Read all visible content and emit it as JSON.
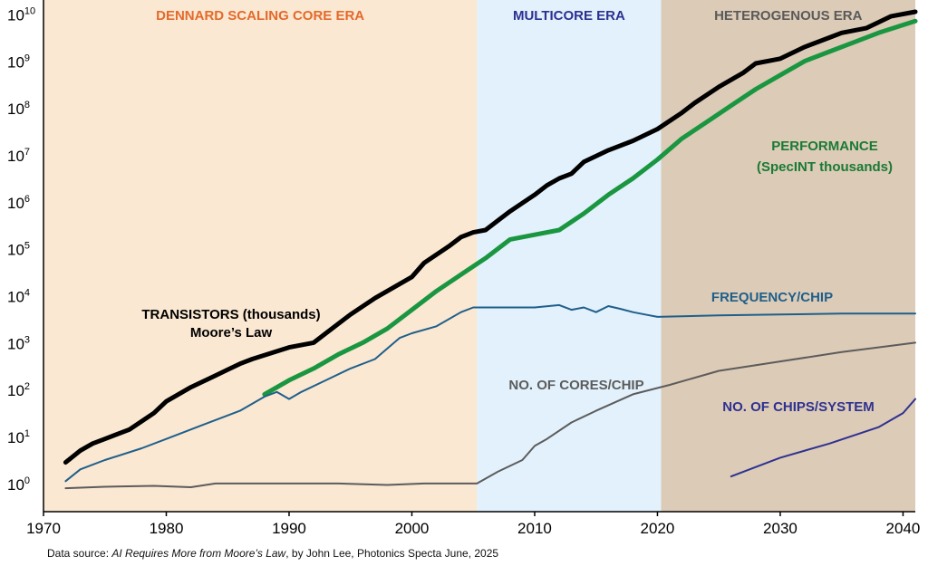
{
  "chart_data": {
    "type": "line",
    "y_scale": "log10",
    "xlim": [
      1970,
      2041
    ],
    "ylim_log10": [
      -0.6,
      10.3
    ],
    "x_ticks": [
      1970,
      1980,
      1990,
      2000,
      2010,
      2020,
      2030,
      2040
    ],
    "y_ticks": [
      {
        "base": "10",
        "exp": "0"
      },
      {
        "base": "10",
        "exp": "1"
      },
      {
        "base": "10",
        "exp": "2"
      },
      {
        "base": "10",
        "exp": "3"
      },
      {
        "base": "10",
        "exp": "4"
      },
      {
        "base": "10",
        "exp": "5"
      },
      {
        "base": "10",
        "exp": "6"
      },
      {
        "base": "10",
        "exp": "7"
      },
      {
        "base": "10",
        "exp": "8"
      },
      {
        "base": "10",
        "exp": "9"
      },
      {
        "base": "10",
        "exp": "10"
      }
    ],
    "eras": [
      {
        "name": "DENNARD SCALING CORE ERA",
        "start": 1970,
        "end": 2005.3,
        "fill": "#fae8d2",
        "label_color": "#e46a2c"
      },
      {
        "name": "MULTICORE ERA",
        "start": 2005.3,
        "end": 2020.3,
        "fill": "#e2f1fb",
        "label_color": "#2e3192"
      },
      {
        "name": "HETEROGENOUS ERA",
        "start": 2020.3,
        "end": 2041,
        "fill": "#dccbb6",
        "label_color": "#5a5a5a"
      }
    ],
    "series": [
      {
        "key": "transistors",
        "name": "TRANSISTORS (thousands)",
        "color": "#000000",
        "width": 5,
        "x": [
          1971.8,
          1973,
          1974,
          1975,
          1977,
          1979,
          1980,
          1982,
          1984,
          1986,
          1987,
          1990,
          1992,
          1993,
          1995,
          1997,
          2000,
          2001,
          2003,
          2004,
          2005,
          2006,
          2007,
          2008,
          2010,
          2011,
          2012,
          2013,
          2014,
          2016,
          2018,
          2020,
          2022,
          2023,
          2025,
          2026,
          2027,
          2028,
          2030,
          2032,
          2034,
          2035,
          2037,
          2039,
          2041
        ],
        "y_log10": [
          0.45,
          0.7,
          0.85,
          0.95,
          1.15,
          1.5,
          1.75,
          2.05,
          2.3,
          2.55,
          2.65,
          2.9,
          3.0,
          3.2,
          3.6,
          3.95,
          4.4,
          4.7,
          5.05,
          5.25,
          5.35,
          5.4,
          5.6,
          5.8,
          6.15,
          6.35,
          6.5,
          6.6,
          6.85,
          7.1,
          7.3,
          7.55,
          7.9,
          8.1,
          8.45,
          8.6,
          8.75,
          8.95,
          9.05,
          9.3,
          9.5,
          9.6,
          9.7,
          9.95,
          10.05
        ]
      },
      {
        "key": "performance",
        "name": "PERFORMANCE (SpecINT thousands)",
        "color": "#1a9641",
        "width": 5,
        "x": [
          1988,
          1990,
          1992,
          1994,
          1996,
          1998,
          2000,
          2002,
          2004,
          2006,
          2008,
          2010,
          2012,
          2014,
          2016,
          2018,
          2020,
          2022,
          2024,
          2026,
          2028,
          2030,
          2032,
          2034,
          2036,
          2038,
          2041
        ],
        "y_log10": [
          1.9,
          2.2,
          2.45,
          2.75,
          3.0,
          3.3,
          3.7,
          4.1,
          4.45,
          4.8,
          5.2,
          5.3,
          5.4,
          5.75,
          6.15,
          6.5,
          6.9,
          7.35,
          7.7,
          8.05,
          8.4,
          8.7,
          9.0,
          9.2,
          9.4,
          9.6,
          9.85
        ]
      },
      {
        "key": "frequency",
        "name": "FREQUENCY/CHIP",
        "color": "#1f5f8b",
        "width": 2,
        "x": [
          1971.8,
          1973,
          1975,
          1978,
          1980,
          1983,
          1986,
          1988,
          1989,
          1990,
          1991,
          1993,
          1995,
          1997,
          1999,
          2000,
          2002,
          2004,
          2005,
          2007,
          2010,
          2012,
          2013,
          2014,
          2015,
          2016,
          2017,
          2018,
          2019,
          2020,
          2025,
          2030,
          2035,
          2041
        ],
        "y_log10": [
          0.05,
          0.3,
          0.5,
          0.75,
          0.95,
          1.25,
          1.55,
          1.85,
          1.95,
          1.8,
          1.95,
          2.2,
          2.45,
          2.65,
          3.1,
          3.2,
          3.35,
          3.65,
          3.75,
          3.75,
          3.75,
          3.8,
          3.7,
          3.75,
          3.65,
          3.78,
          3.72,
          3.65,
          3.6,
          3.55,
          3.58,
          3.6,
          3.62,
          3.62
        ]
      },
      {
        "key": "cores",
        "name": "NO. OF CORES/CHIP",
        "color": "#5c5c5c",
        "width": 2,
        "x": [
          1971.8,
          1975,
          1979,
          1982,
          1984,
          1990,
          1994,
          1998,
          2001,
          2004,
          2005.3,
          2007,
          2009,
          2010,
          2011,
          2013,
          2015,
          2018,
          2021,
          2025,
          2030,
          2035,
          2041
        ],
        "y_log10": [
          -0.1,
          -0.07,
          -0.05,
          -0.08,
          0.0,
          0.0,
          0.0,
          -0.03,
          0.0,
          0.0,
          0.0,
          0.25,
          0.5,
          0.8,
          0.95,
          1.3,
          1.55,
          1.9,
          2.1,
          2.4,
          2.6,
          2.8,
          3.0
        ]
      },
      {
        "key": "chips",
        "name": "NO. OF CHIPS/SYSTEM",
        "color": "#2e3192",
        "width": 2,
        "x": [
          2026,
          2030,
          2034,
          2038,
          2040,
          2041
        ],
        "y_log10": [
          0.15,
          0.55,
          0.85,
          1.2,
          1.5,
          1.8
        ]
      }
    ]
  },
  "labels": {
    "transistors_line1": "TRANSISTORS  (thousands)",
    "transistors_line2": "Moore’s Law",
    "performance_line1": "PERFORMANCE",
    "performance_line2": "(SpecINT thousands)",
    "frequency": "FREQUENCY/CHIP",
    "cores": "NO. OF CORES/CHIP",
    "chips": "NO. OF CHIPS/SYSTEM"
  },
  "source": {
    "prefix": "Data source: ",
    "title": "AI Requires More from Moore’s Law",
    "suffix": ", by John Lee, Photonics Specta June, 2025"
  }
}
